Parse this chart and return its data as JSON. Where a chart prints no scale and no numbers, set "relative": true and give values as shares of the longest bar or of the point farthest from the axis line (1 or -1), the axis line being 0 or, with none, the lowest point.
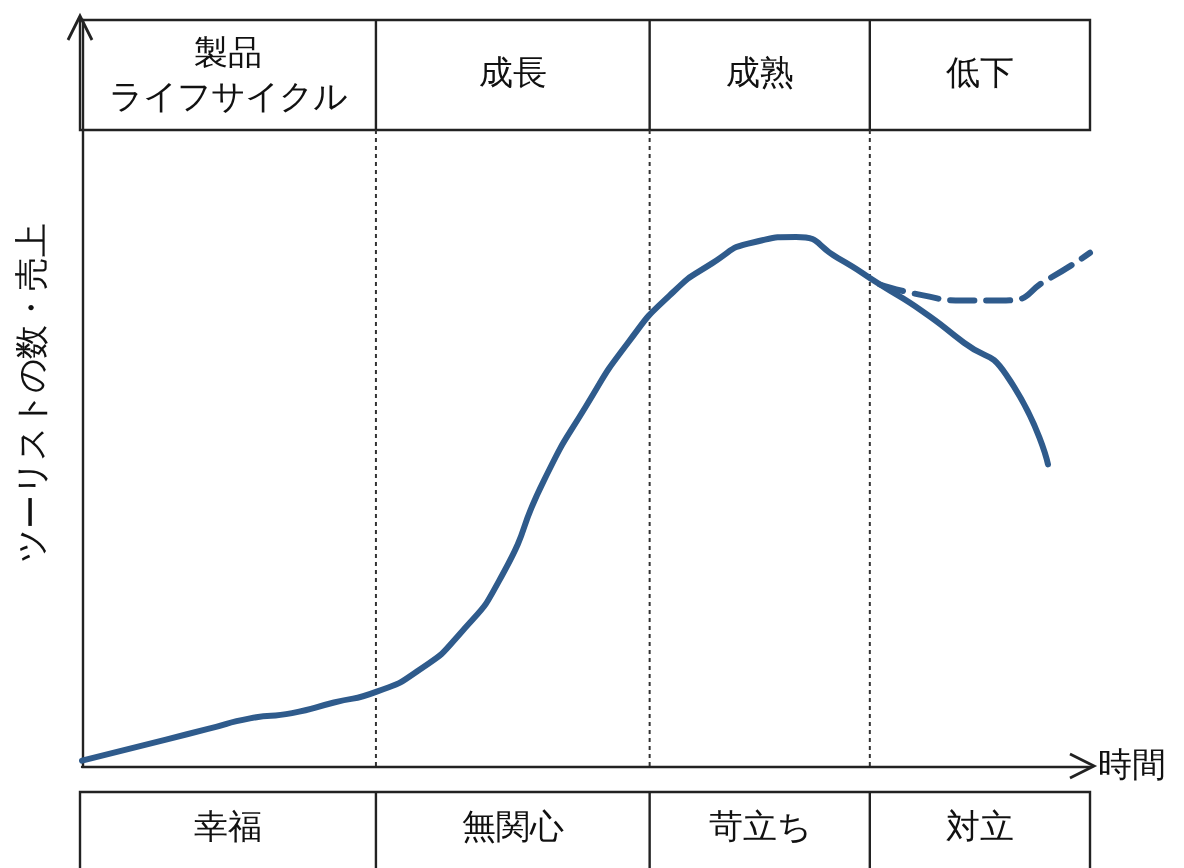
{
  "chart_data": {
    "type": "line",
    "relative": true,
    "xlabel": "時間",
    "ylabel": "ツーリストの数・売上",
    "categories": [
      null,
      null,
      null,
      null,
      null,
      null,
      null,
      null,
      null,
      null,
      null,
      null,
      null,
      null,
      null,
      null,
      null,
      null,
      null,
      null,
      null,
      null,
      null,
      null,
      null
    ],
    "series": [
      {
        "color": "#2f5b8c",
        "line_style": "solid",
        "values": [
          0.01,
          0.03,
          0.05,
          0.07,
          0.09,
          0.1,
          0.12,
          0.14,
          0.18,
          0.25,
          0.36,
          0.54,
          0.68,
          0.8,
          0.89,
          0.95,
          0.99,
          1.0,
          0.96,
          0.91,
          0.86,
          0.8,
          0.74,
          0.57,
          null
        ]
      },
      {
        "color": "#2f5b8c",
        "line_style": "dashed",
        "values": [
          null,
          null,
          null,
          null,
          null,
          null,
          null,
          null,
          null,
          null,
          null,
          null,
          null,
          null,
          null,
          null,
          null,
          null,
          null,
          0.91,
          0.89,
          0.88,
          0.88,
          0.92,
          0.97
        ]
      }
    ],
    "annotations": [
      "製品",
      "ライフサイクル",
      "成長",
      "成熟",
      "低下",
      "幸福",
      "無関心",
      "苛立ち",
      "対立"
    ],
    "grid": false,
    "marker": "none"
  }
}
